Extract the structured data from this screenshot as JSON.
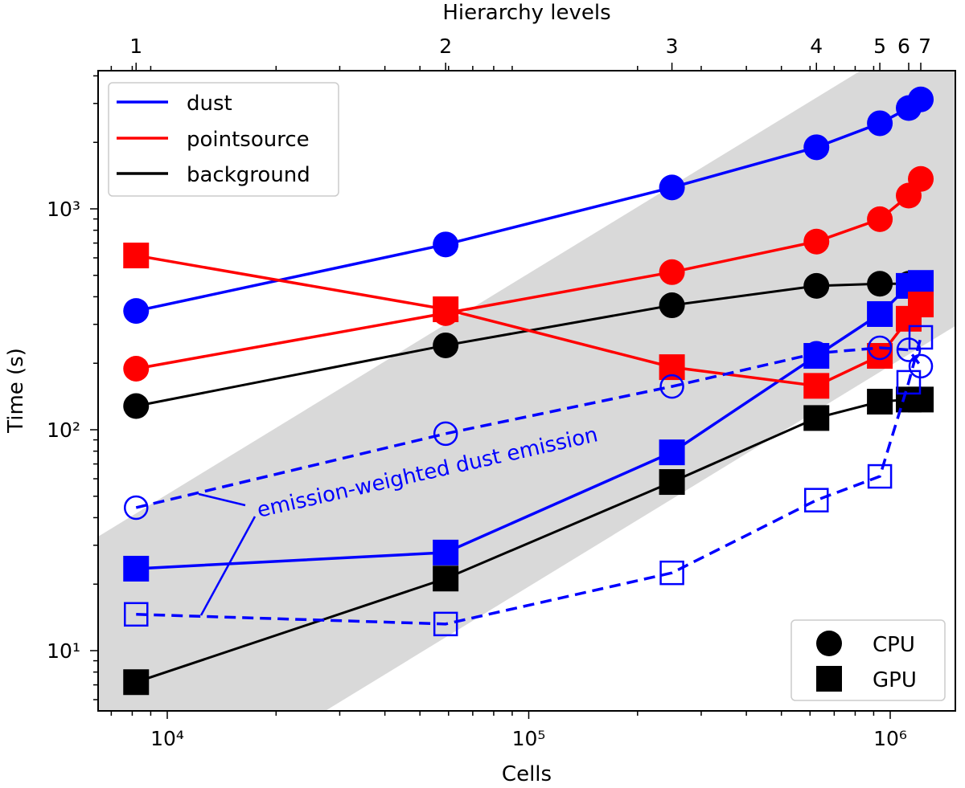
{
  "chart_data": {
    "type": "line",
    "xscale": "log",
    "yscale": "log",
    "xlabel": "Cells",
    "ylabel": "Time (s)",
    "top_xlabel": "Hierarchy levels",
    "xlim": [
      6440,
      1510000
    ],
    "ylim": [
      5.3,
      4220
    ],
    "x_ticks": [
      {
        "value": 10000,
        "label": "10⁴"
      },
      {
        "value": 100000,
        "label": "10⁵"
      },
      {
        "value": 1000000,
        "label": "10⁶"
      }
    ],
    "y_ticks": [
      {
        "value": 10,
        "label": "10¹"
      },
      {
        "value": 100,
        "label": "10²"
      },
      {
        "value": 1000,
        "label": "10³"
      }
    ],
    "top_ticks": [
      "1",
      "2",
      "3",
      "4",
      "5",
      "6",
      "7"
    ],
    "x": [
      8200,
      58900,
      249000,
      625000,
      936000,
      1125000,
      1215000
    ],
    "shaded_band": {
      "description_ratio_time_per_cell": [
        0.000195,
        0.0051
      ],
      "color": "#d9d9d9"
    },
    "series": [
      {
        "name": "dust CPU",
        "group": "dust",
        "device": "CPU",
        "color": "#0000ff",
        "marker": "circle",
        "filled": true,
        "dashed": false,
        "values": [
          345,
          690,
          1250,
          1900,
          2440,
          2860,
          3130
        ]
      },
      {
        "name": "pointsource CPU",
        "group": "pointsource",
        "device": "CPU",
        "color": "#ff0000",
        "marker": "circle",
        "filled": true,
        "dashed": false,
        "values": [
          189,
          337,
          517,
          711,
          898,
          1148,
          1366
        ]
      },
      {
        "name": "background CPU",
        "group": "background",
        "device": "CPU",
        "color": "#000000",
        "marker": "circle",
        "filled": true,
        "dashed": false,
        "values": [
          128,
          241,
          366,
          448,
          458,
          458,
          458
        ]
      },
      {
        "name": "dust GPU",
        "group": "dust",
        "device": "GPU",
        "color": "#0000ff",
        "marker": "square",
        "filled": true,
        "dashed": false,
        "values": [
          23.5,
          27.8,
          79,
          216,
          334,
          448,
          462
        ]
      },
      {
        "name": "pointsource GPU",
        "group": "pointsource",
        "device": "GPU",
        "color": "#ff0000",
        "marker": "square",
        "filled": true,
        "dashed": false,
        "values": [
          615,
          351,
          192,
          158,
          216,
          318,
          369
        ]
      },
      {
        "name": "background GPU",
        "group": "background",
        "device": "GPU",
        "color": "#000000",
        "marker": "square",
        "filled": true,
        "dashed": false,
        "values": [
          7.2,
          21.2,
          58,
          113,
          134,
          137,
          137
        ]
      },
      {
        "name": "emission-weighted dust CPU",
        "group": "dust",
        "device": "CPU",
        "color": "#0000ff",
        "marker": "circle",
        "filled": false,
        "dashed": true,
        "values": [
          44.4,
          96,
          157,
          222,
          235,
          230,
          194
        ]
      },
      {
        "name": "emission-weighted dust GPU",
        "group": "dust",
        "device": "GPU",
        "color": "#0000ff",
        "marker": "square",
        "filled": false,
        "dashed": true,
        "values": [
          14.6,
          13.2,
          22.5,
          48,
          61.5,
          164,
          262
        ]
      }
    ],
    "legend_series": {
      "placement": "top-left",
      "entries": [
        {
          "label": "dust",
          "color": "#0000ff"
        },
        {
          "label": "pointsource",
          "color": "#ff0000"
        },
        {
          "label": "background",
          "color": "#000000"
        }
      ]
    },
    "legend_device": {
      "placement": "bottom-right",
      "entries": [
        {
          "label": "CPU",
          "marker": "circle"
        },
        {
          "label": "GPU",
          "marker": "square"
        }
      ]
    },
    "annotation": {
      "text": "emission-weighted dust emission",
      "color": "#0000ff"
    }
  }
}
